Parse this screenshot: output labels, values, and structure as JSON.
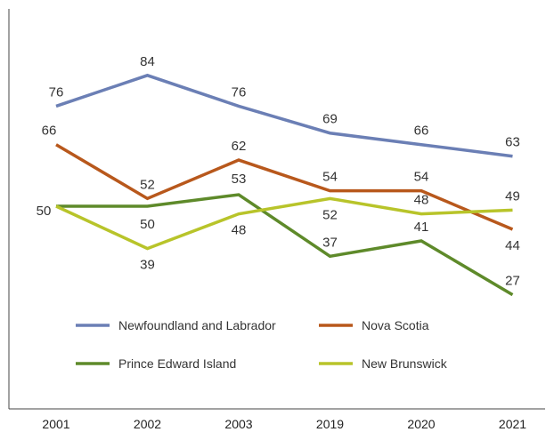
{
  "chart_data": {
    "type": "line",
    "title": "",
    "xlabel": "",
    "ylabel": "",
    "categories": [
      "2001",
      "2002",
      "2003",
      "2019",
      "2020",
      "2021"
    ],
    "ylim": [
      15,
      95
    ],
    "grid": false,
    "legend_position": "bottom-center",
    "series": [
      {
        "name": "Newfoundland and Labrador",
        "color": "#6b7fb5",
        "values": [
          76,
          84,
          76,
          69,
          66,
          63
        ],
        "labels": [
          "76",
          "84",
          "76",
          "69",
          "66",
          "63"
        ]
      },
      {
        "name": "Nova Scotia",
        "color": "#b8581c",
        "values": [
          66,
          52,
          62,
          54,
          54,
          44
        ],
        "labels": [
          "66",
          "52",
          "62",
          "54",
          "54",
          "44"
        ]
      },
      {
        "name": "Prince Edward Island",
        "color": "#5e8a2a",
        "values": [
          50,
          50,
          53,
          37,
          41,
          27
        ],
        "labels": [
          "50",
          "50",
          "53",
          "37",
          "41",
          "27"
        ]
      },
      {
        "name": "New Brunswick",
        "color": "#b8c42a",
        "values": [
          50,
          39,
          48,
          52,
          48,
          49
        ],
        "labels": [
          "",
          "39",
          "48",
          "52",
          "48",
          "49"
        ]
      }
    ]
  }
}
